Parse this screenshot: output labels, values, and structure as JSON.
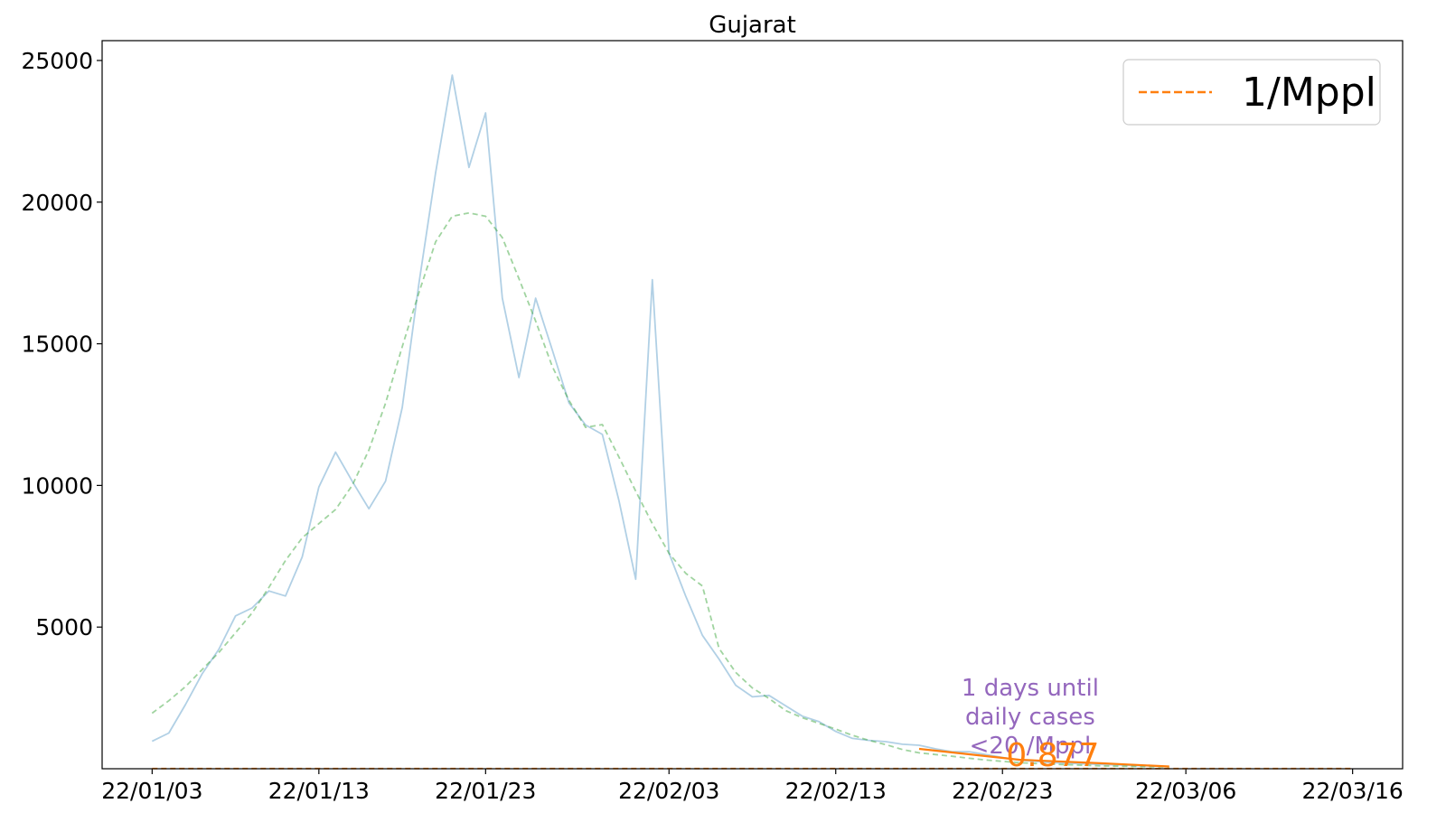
{
  "chart_data": {
    "type": "line",
    "title": "Gujarat",
    "xlabel": "",
    "ylabel": "",
    "x_tick_labels": [
      "22/01/03",
      "22/01/13",
      "22/01/23",
      "22/02/03",
      "22/02/13",
      "22/02/23",
      "22/03/06",
      "22/03/16"
    ],
    "y_ticks": [
      5000,
      10000,
      15000,
      20000,
      25000
    ],
    "xlim": [
      "2022-01-00",
      "2022-03-19"
    ],
    "ylim": [
      0,
      25700
    ],
    "grid": false,
    "legend": {
      "placement": "top-right",
      "entries": [
        {
          "label": "1/Mppl",
          "color": "#ff7f0e",
          "style": "dashed"
        }
      ]
    },
    "series": [
      {
        "role": "daily",
        "color": "#1f77b4",
        "alpha": 0.35,
        "style": "solid",
        "x": [
          "2022-01-03",
          "2022-01-04",
          "2022-01-05",
          "2022-01-06",
          "2022-01-07",
          "2022-01-08",
          "2022-01-09",
          "2022-01-10",
          "2022-01-11",
          "2022-01-12",
          "2022-01-13",
          "2022-01-14",
          "2022-01-15",
          "2022-01-16",
          "2022-01-17",
          "2022-01-18",
          "2022-01-19",
          "2022-01-20",
          "2022-01-21",
          "2022-01-22",
          "2022-01-23",
          "2022-01-24",
          "2022-01-25",
          "2022-01-26",
          "2022-01-27",
          "2022-01-28",
          "2022-01-29",
          "2022-01-30",
          "2022-01-31",
          "2022-02-01",
          "2022-02-02",
          "2022-02-03",
          "2022-02-04",
          "2022-02-05",
          "2022-02-06",
          "2022-02-07",
          "2022-02-08",
          "2022-02-09",
          "2022-02-10",
          "2022-02-11",
          "2022-02-12",
          "2022-02-13",
          "2022-02-14",
          "2022-02-15",
          "2022-02-16",
          "2022-02-17",
          "2022-02-18",
          "2022-02-19",
          "2022-02-20",
          "2022-02-21",
          "2022-02-22",
          "2022-02-23",
          "2022-02-24",
          "2022-02-25",
          "2022-02-26",
          "2022-02-27",
          "2022-02-28",
          "2022-03-01",
          "2022-03-02",
          "2022-03-03",
          "2022-03-04",
          "2022-03-05"
        ],
        "values": [
          968,
          1260,
          2265,
          3350,
          4213,
          5396,
          5677,
          6275,
          6097,
          7476,
          9941,
          11176,
          10150,
          9177,
          10150,
          12754,
          17119,
          21034,
          24485,
          21225,
          23150,
          16617,
          13805,
          16608,
          14781,
          12911,
          12131,
          11800,
          9462,
          6690,
          17263,
          7606,
          6097,
          4710,
          3872,
          2946,
          2538,
          2588,
          2219,
          1856,
          1661,
          1317,
          1070,
          1000,
          956,
          864,
          829,
          700,
          600,
          600,
          500,
          400,
          300,
          262,
          215,
          190,
          170,
          150,
          130,
          110,
          97,
          80
        ]
      },
      {
        "role": "smoothed",
        "color": "#2ca02c",
        "alpha": 0.45,
        "style": "dashed",
        "x": [
          "2022-01-03",
          "2022-01-04",
          "2022-01-05",
          "2022-01-06",
          "2022-01-07",
          "2022-01-08",
          "2022-01-09",
          "2022-01-10",
          "2022-01-11",
          "2022-01-12",
          "2022-01-13",
          "2022-01-14",
          "2022-01-15",
          "2022-01-16",
          "2022-01-17",
          "2022-01-18",
          "2022-01-19",
          "2022-01-20",
          "2022-01-21",
          "2022-01-22",
          "2022-01-23",
          "2022-01-24",
          "2022-01-25",
          "2022-01-26",
          "2022-01-27",
          "2022-01-28",
          "2022-01-29",
          "2022-01-30",
          "2022-01-31",
          "2022-02-01",
          "2022-02-02",
          "2022-02-03",
          "2022-02-04",
          "2022-02-05",
          "2022-02-06",
          "2022-02-07",
          "2022-02-08",
          "2022-02-09",
          "2022-02-10",
          "2022-02-11",
          "2022-02-12",
          "2022-02-13",
          "2022-02-14",
          "2022-02-15",
          "2022-02-16",
          "2022-02-17",
          "2022-02-18",
          "2022-02-19",
          "2022-02-20",
          "2022-02-21",
          "2022-02-22",
          "2022-02-23",
          "2022-02-24",
          "2022-02-25",
          "2022-02-26",
          "2022-02-27",
          "2022-02-28",
          "2022-03-01",
          "2022-03-02",
          "2022-03-03",
          "2022-03-04",
          "2022-03-05"
        ],
        "values": [
          1960,
          2400,
          2900,
          3500,
          4100,
          4800,
          5500,
          6400,
          7350,
          8150,
          8650,
          9150,
          10000,
          11250,
          12900,
          14900,
          16800,
          18600,
          19500,
          19620,
          19500,
          18750,
          17300,
          15800,
          14200,
          13000,
          12050,
          12150,
          11000,
          9800,
          8650,
          7600,
          6900,
          6450,
          4250,
          3400,
          2850,
          2480,
          2050,
          1800,
          1600,
          1400,
          1180,
          1000,
          850,
          680,
          560,
          500,
          440,
          370,
          310,
          260,
          215,
          185,
          160,
          140,
          120,
          100,
          90,
          80,
          70,
          60
        ]
      },
      {
        "role": "projection",
        "color": "#ff7f0e",
        "alpha": 1,
        "style": "solid",
        "x": [
          "2022-02-18",
          "2022-02-24",
          "2022-03-01",
          "2022-03-05"
        ],
        "values": [
          700,
          320,
          190,
          80
        ]
      },
      {
        "role": "threshold",
        "name": "1/Mppl",
        "color": "#ff7f0e",
        "alpha": 0.9,
        "style": "dashed",
        "x": [
          "2022-01-03",
          "2022-03-16"
        ],
        "values": [
          7,
          7
        ]
      }
    ],
    "annotations": [
      {
        "text": "1 days until\ndaily cases\n<20 /Mppl",
        "color": "#9467bd",
        "x": "2022-03-01",
        "y": 1300
      },
      {
        "text": "0.877",
        "color": "#ff7f0e",
        "x": "2022-03-01",
        "y": 550
      }
    ]
  }
}
